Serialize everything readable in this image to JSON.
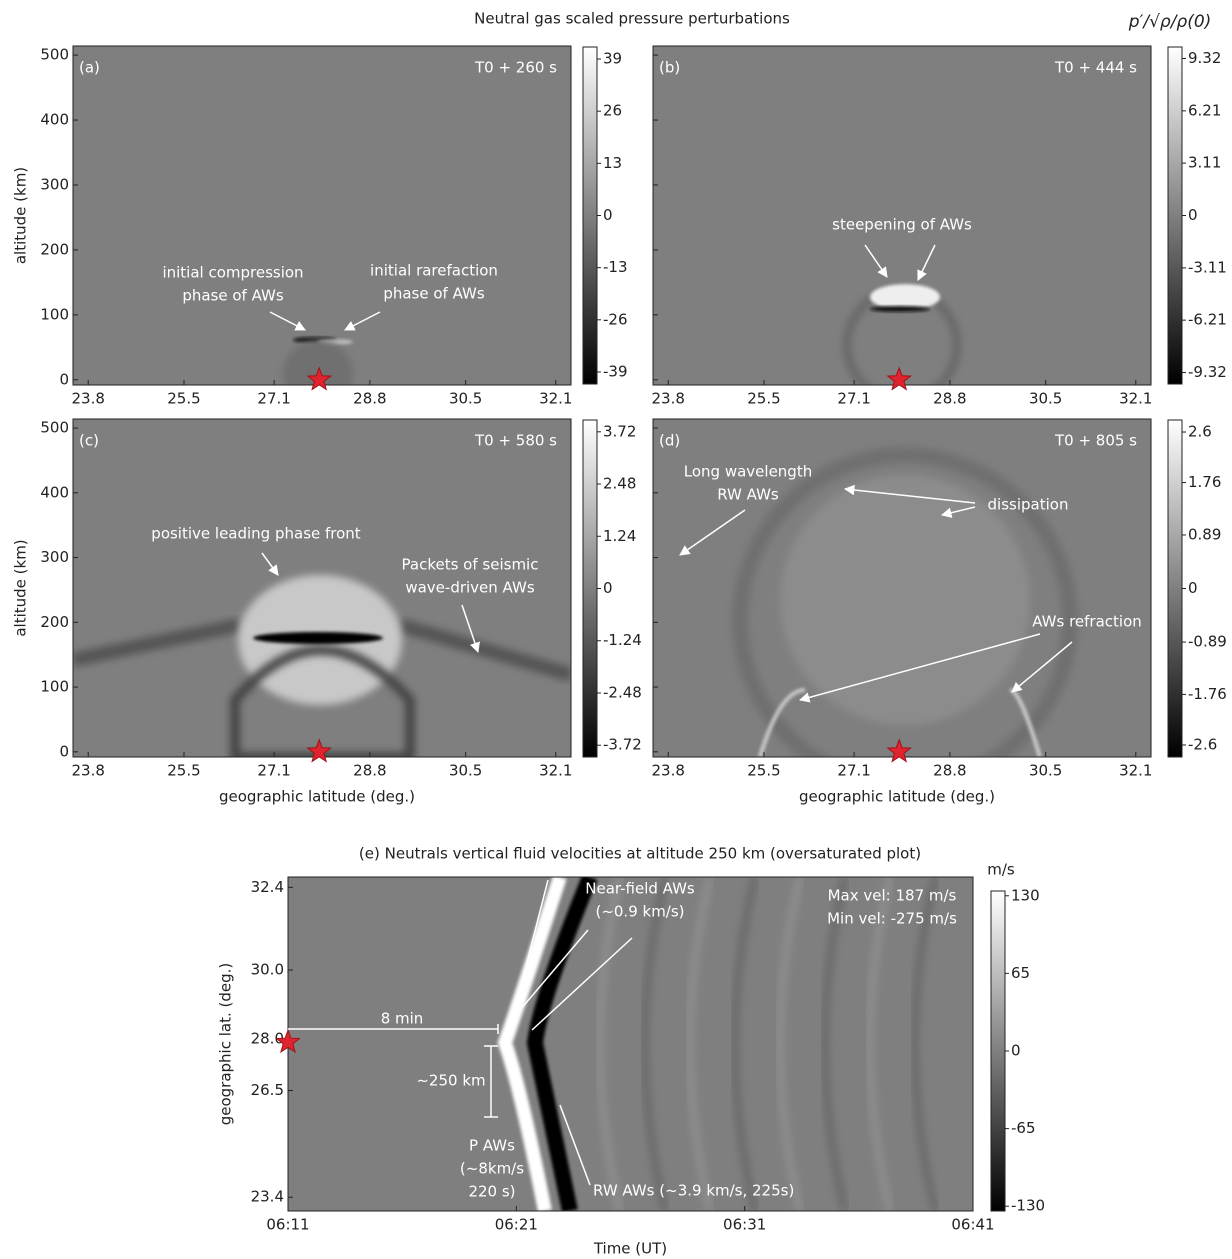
{
  "figure": {
    "title": "Neutral gas scaled pressure perturbations",
    "colorbar_label": "p′/√ρ/ρ(0)"
  },
  "chart_data": [
    {
      "type": "heatmap",
      "panel_label": "(a)",
      "time_label": "T0 + 260 s",
      "ylabel": "altitude (km)",
      "xlim": [
        23.53,
        32.37
      ],
      "xticks": [
        23.8,
        25.5,
        27.1,
        28.8,
        30.5,
        32.1
      ],
      "ylim": [
        -8,
        514
      ],
      "yticks": [
        0,
        100,
        200,
        300,
        400,
        500
      ],
      "ytick_labels": true,
      "clim": [
        -42,
        42
      ],
      "cticks": [
        39,
        26,
        13,
        0,
        -13,
        -26,
        -39
      ],
      "epicenter": [
        27.9,
        0
      ],
      "annotations": [
        {
          "lines": [
            "initial compression",
            "phase of AWs"
          ]
        },
        {
          "lines": [
            "initial rarefaction",
            "phase of AWs"
          ]
        }
      ]
    },
    {
      "type": "heatmap",
      "panel_label": "(b)",
      "time_label": "T0 + 444 s",
      "xlim": [
        23.53,
        32.37
      ],
      "xticks": [
        23.8,
        25.5,
        27.1,
        28.8,
        30.5,
        32.1
      ],
      "ylim": [
        -8,
        514
      ],
      "yticks": [
        0,
        100,
        200,
        300,
        400,
        500
      ],
      "ytick_labels": false,
      "clim": [
        -10,
        10
      ],
      "cticks": [
        9.32,
        6.21,
        3.11,
        0,
        -3.11,
        -6.21,
        -9.32
      ],
      "epicenter": [
        27.9,
        0
      ],
      "annotations": [
        {
          "lines": [
            "steepening of AWs"
          ]
        }
      ]
    },
    {
      "type": "heatmap",
      "panel_label": "(c)",
      "time_label": "T0 + 580 s",
      "ylabel": "altitude (km)",
      "xlabel": "geographic latitude (deg.)",
      "xlim": [
        23.53,
        32.37
      ],
      "xticks": [
        23.8,
        25.5,
        27.1,
        28.8,
        30.5,
        32.1
      ],
      "ylim": [
        -8,
        514
      ],
      "yticks": [
        0,
        100,
        200,
        300,
        400,
        500
      ],
      "ytick_labels": true,
      "clim": [
        -4,
        4
      ],
      "cticks": [
        3.72,
        2.48,
        1.24,
        0,
        -1.24,
        -2.48,
        -3.72
      ],
      "epicenter": [
        27.9,
        0
      ],
      "annotations": [
        {
          "lines": [
            "positive leading phase front"
          ]
        },
        {
          "lines": [
            "Packets of seismic",
            "wave-driven AWs"
          ]
        }
      ]
    },
    {
      "type": "heatmap",
      "panel_label": "(d)",
      "time_label": "T0 + 805 s",
      "xlabel": "geographic latitude (deg.)",
      "xlim": [
        23.53,
        32.37
      ],
      "xticks": [
        23.8,
        25.5,
        27.1,
        28.8,
        30.5,
        32.1
      ],
      "ylim": [
        -8,
        514
      ],
      "yticks": [
        0,
        100,
        200,
        300,
        400,
        500
      ],
      "ytick_labels": false,
      "clim": [
        -2.8,
        2.8
      ],
      "cticks": [
        2.6,
        1.76,
        0.89,
        0,
        -0.89,
        -1.76,
        -2.6
      ],
      "epicenter": [
        27.9,
        0
      ],
      "annotations": [
        {
          "lines": [
            "Long wavelength",
            "RW AWs"
          ]
        },
        {
          "lines": [
            "dissipation"
          ]
        },
        {
          "lines": [
            "AWs refraction"
          ]
        }
      ]
    },
    {
      "type": "heatmap",
      "title": "(e) Neutrals vertical fluid velocities at altitude 250 km (oversaturated plot)",
      "xlabel": "Time (UT)",
      "ylabel": "geographic lat. (deg.)",
      "colorbar_unit": "m/s",
      "xlim": [
        "06:11",
        "06:41"
      ],
      "xticks": [
        "06:11",
        "06:21",
        "06:31",
        "06:41"
      ],
      "ylim": [
        23.0,
        32.7
      ],
      "yticks": [
        23.4,
        26.5,
        {
          "value": 28,
          "label": "28.0"
        },
        {
          "value": 30,
          "label": "30.0"
        },
        32.4
      ],
      "ytick_labels": true,
      "clim": [
        -134,
        134
      ],
      "cticks": [
        130,
        65,
        0,
        -65,
        -130
      ],
      "epicenter": [
        "06:11",
        27.9
      ],
      "annotations": [
        {
          "lines": [
            "Near-field AWs",
            "(~0.9 km/s)"
          ]
        },
        {
          "lines": [
            "Max vel: 187 m/s",
            "Min vel: -275 m/s"
          ]
        },
        {
          "lines": [
            "8 min"
          ]
        },
        {
          "lines": [
            "~250 km"
          ]
        },
        {
          "lines": [
            "P AWs",
            "(~8km/s",
            "220 s)"
          ]
        },
        {
          "lines": [
            "RW AWs (~3.9 km/s, 225s)"
          ]
        }
      ]
    }
  ]
}
